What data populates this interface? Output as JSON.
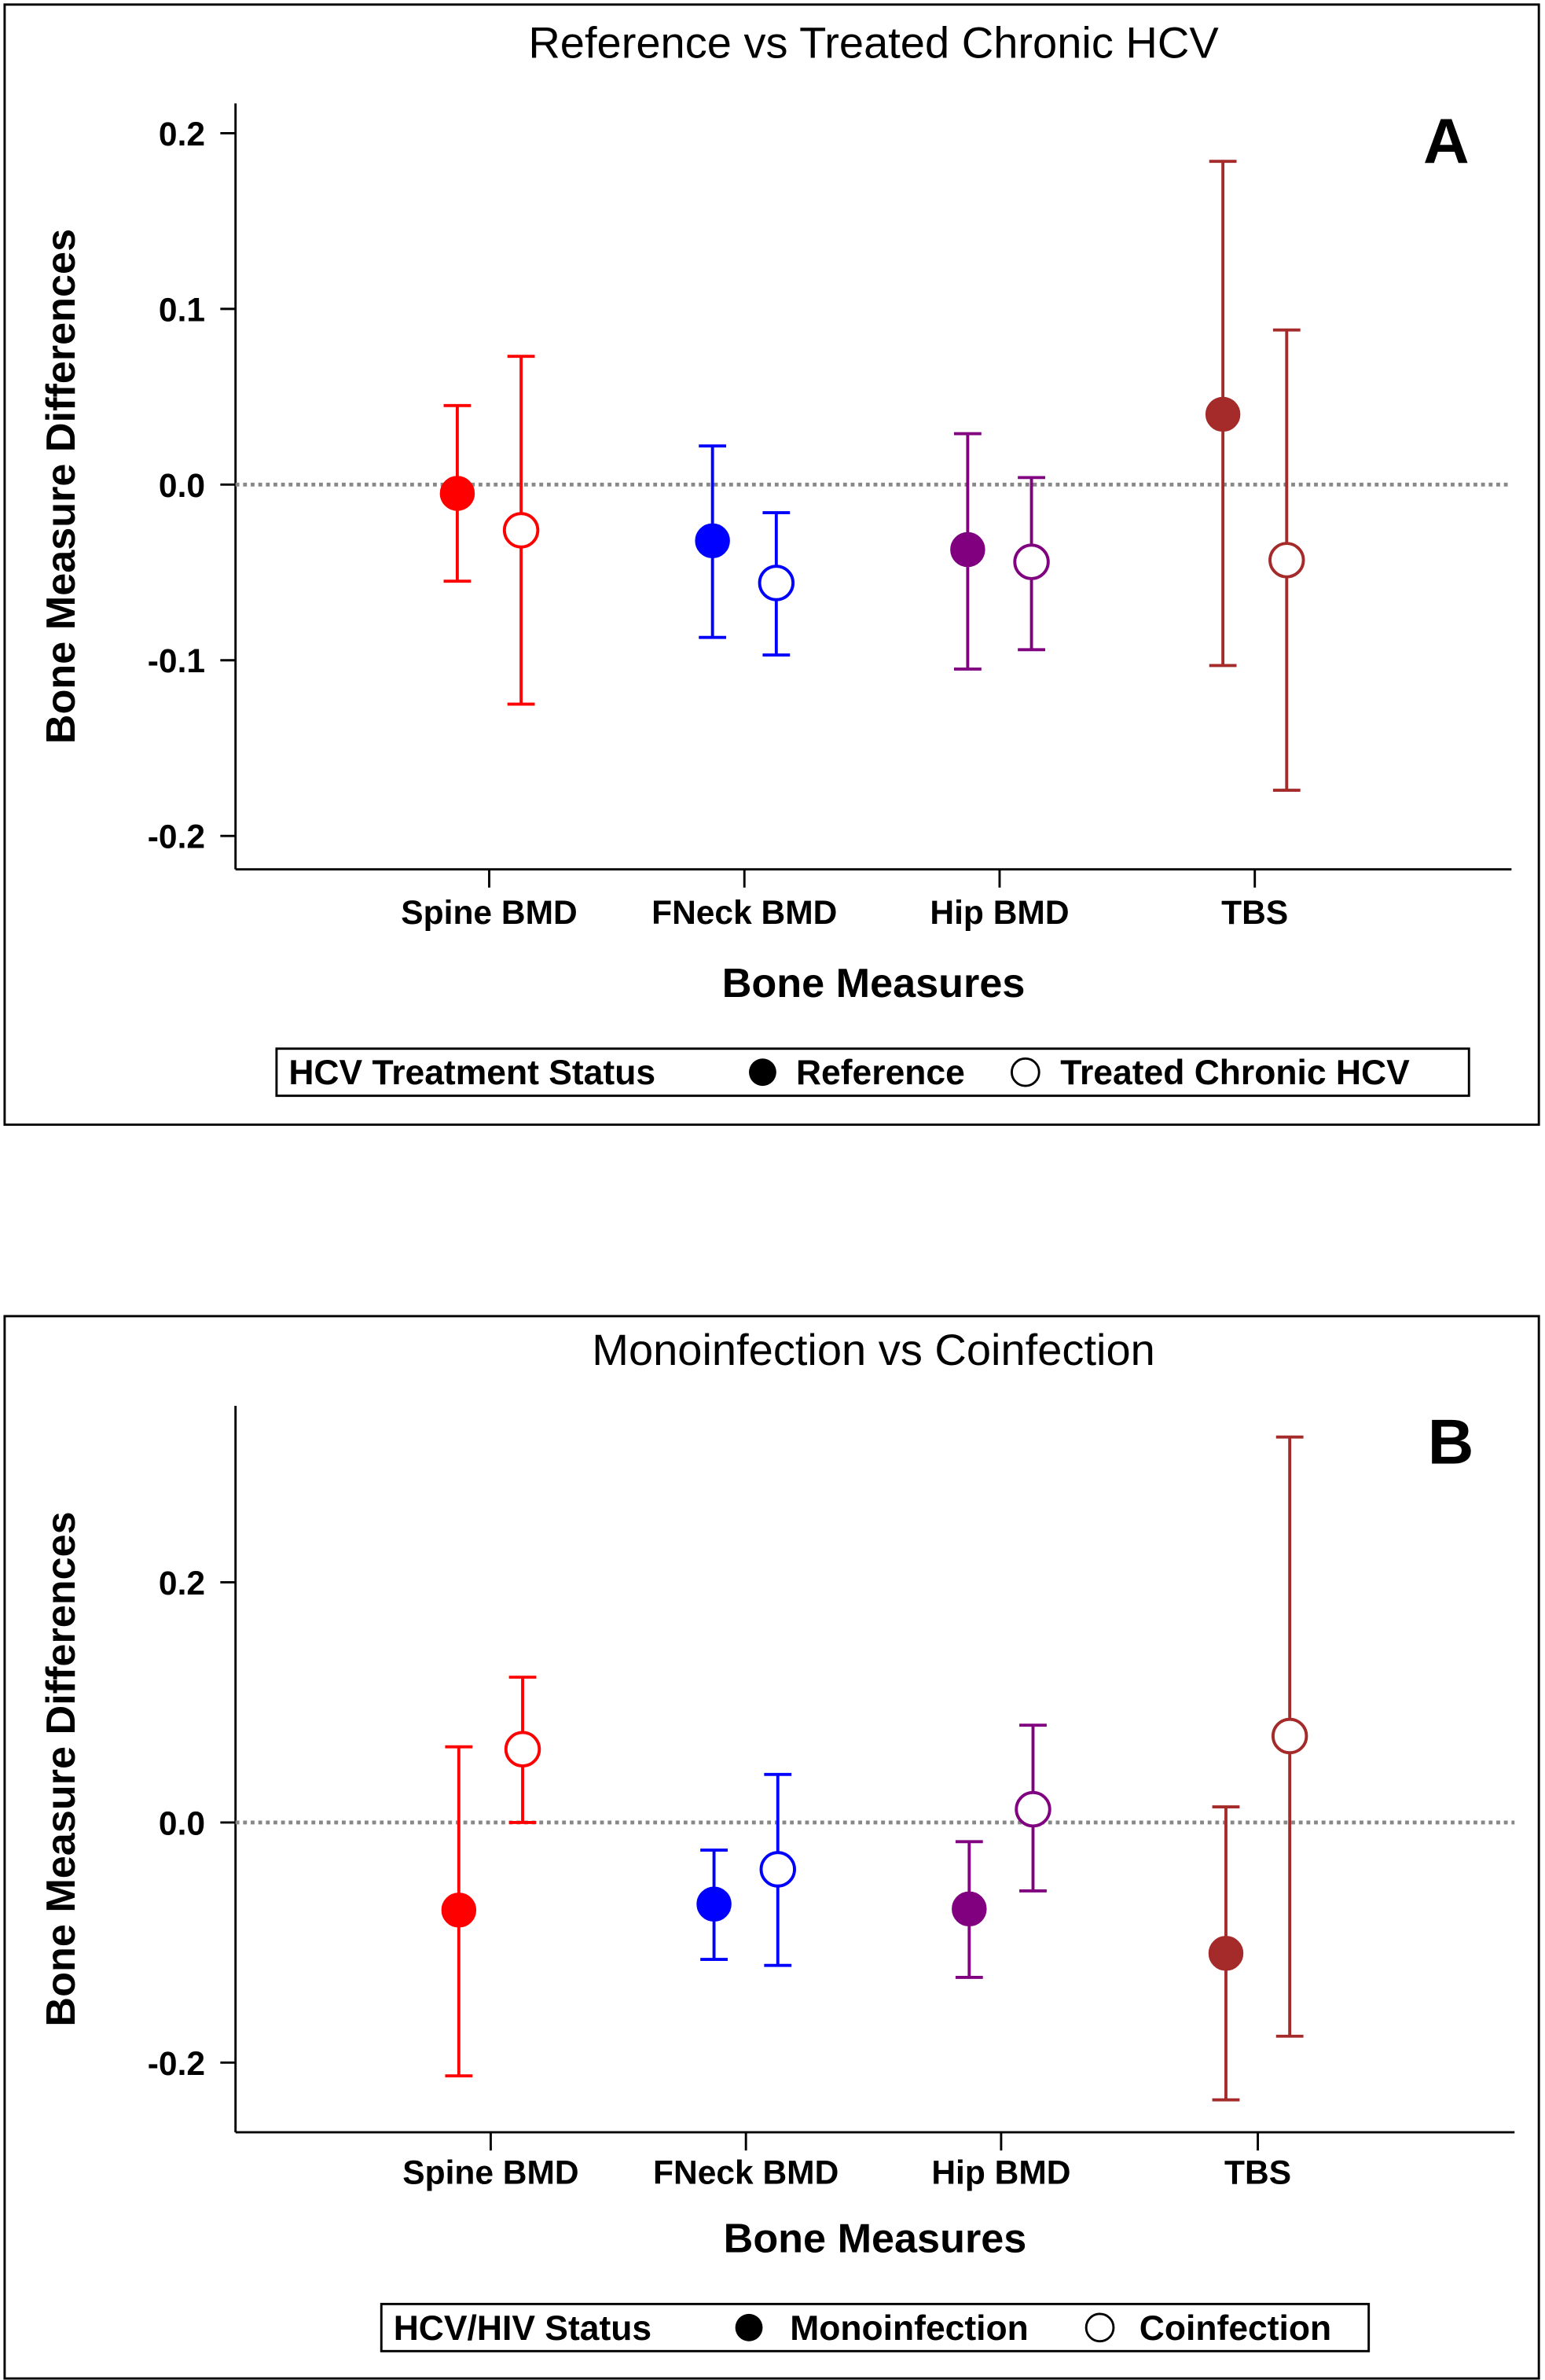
{
  "chart_data": [
    {
      "type": "scatter",
      "panel_letter": "A",
      "title": "Reference vs Treated Chronic HCV",
      "xlabel": "Bone Measures",
      "ylabel": "Bone Measure Differences",
      "categories": [
        "Spine BMD",
        "FNeck BMD",
        "Hip BMD",
        "TBS"
      ],
      "yticks": [
        0.2,
        0.1,
        0.0,
        -0.1,
        -0.2
      ],
      "ytick_labels": [
        "0.2",
        "0.1",
        "0.0",
        "-0.1",
        "-0.2"
      ],
      "ylim": [
        -0.219,
        0.217
      ],
      "reference_line": 0.0,
      "category_colors": [
        "#ff0000",
        "#0000ff",
        "#800080",
        "#a52a2a"
      ],
      "legend": {
        "title": "HCV Treatment Status",
        "placement": "bottom",
        "entries": [
          "Reference",
          "Treated Chronic HCV"
        ]
      },
      "series": [
        {
          "name": "Reference",
          "marker": "filled",
          "values": [
            -0.005,
            -0.032,
            -0.037,
            0.04
          ],
          "lower": [
            -0.055,
            -0.087,
            -0.105,
            -0.103
          ],
          "upper": [
            0.045,
            0.022,
            0.029,
            0.184
          ]
        },
        {
          "name": "Treated Chronic HCV",
          "marker": "open",
          "values": [
            -0.026,
            -0.056,
            -0.044,
            -0.043
          ],
          "lower": [
            -0.125,
            -0.097,
            -0.094,
            -0.174
          ],
          "upper": [
            0.073,
            -0.016,
            0.004,
            0.088
          ]
        }
      ]
    },
    {
      "type": "scatter",
      "panel_letter": "B",
      "title": "Monoinfection vs Coinfection",
      "xlabel": "Bone Measures",
      "ylabel": "Bone Measure Differences",
      "categories": [
        "Spine BMD",
        "FNeck BMD",
        "Hip BMD",
        "TBS"
      ],
      "yticks": [
        0.2,
        0.0,
        -0.2
      ],
      "ytick_labels": [
        "0.2",
        "0.0",
        "-0.2"
      ],
      "ylim": [
        -0.258,
        0.347
      ],
      "reference_line": 0.0,
      "category_colors": [
        "#ff0000",
        "#0000ff",
        "#800080",
        "#a52a2a"
      ],
      "legend": {
        "title": "HCV/HIV Status",
        "placement": "bottom",
        "entries": [
          "Monoinfection",
          "Coinfection"
        ]
      },
      "series": [
        {
          "name": "Monoinfection",
          "marker": "filled",
          "values": [
            -0.073,
            -0.068,
            -0.072,
            -0.109
          ],
          "lower": [
            -0.211,
            -0.114,
            -0.129,
            -0.231
          ],
          "upper": [
            0.063,
            -0.023,
            -0.016,
            0.013
          ]
        },
        {
          "name": "Coinfection",
          "marker": "open",
          "values": [
            0.061,
            -0.039,
            0.011,
            0.072
          ],
          "lower": [
            0.0,
            -0.119,
            -0.057,
            -0.178
          ],
          "upper": [
            0.121,
            0.04,
            0.081,
            0.321
          ]
        }
      ]
    }
  ]
}
